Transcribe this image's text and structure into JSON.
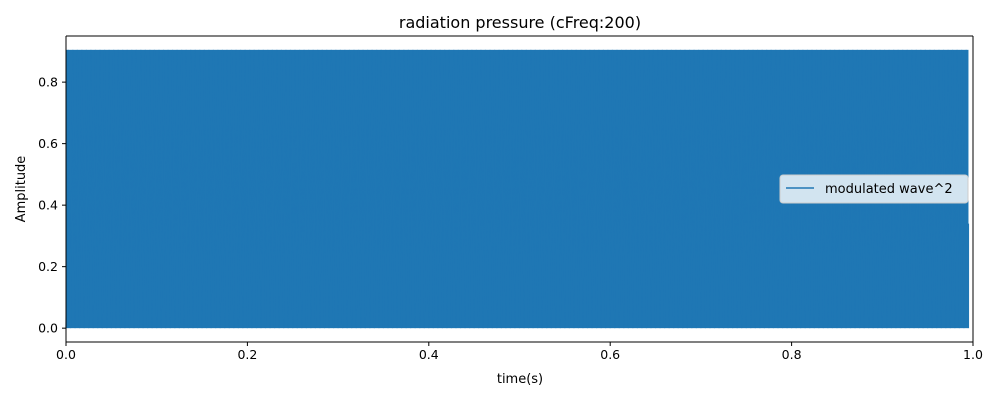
{
  "chart_data": {
    "type": "line",
    "title": "radiation pressure (cFreq:200)",
    "xlabel": "time(s)",
    "ylabel": "Amplitude",
    "xlim": [
      0.0,
      1.0
    ],
    "ylim": [
      -0.045,
      0.95
    ],
    "x_ticks": [
      0.0,
      0.2,
      0.4,
      0.6,
      0.8,
      1.0
    ],
    "x_tick_labels": [
      "0.0",
      "0.2",
      "0.4",
      "0.6",
      "0.8",
      "1.0"
    ],
    "y_ticks": [
      0.0,
      0.2,
      0.4,
      0.6,
      0.8
    ],
    "y_tick_labels": [
      "0.0",
      "0.2",
      "0.4",
      "0.6",
      "0.8"
    ],
    "grid": false,
    "legend": {
      "placement": "center-right",
      "entries": [
        "modulated wave^2"
      ]
    },
    "series": [
      {
        "name": "modulated wave^2",
        "color": "#1f77b4",
        "x_range": [
          0.0,
          0.995
        ],
        "y_min": 0.0,
        "y_max": 0.905,
        "oscillation_frequency_hz": 200,
        "final_value": 0.34
      }
    ]
  }
}
